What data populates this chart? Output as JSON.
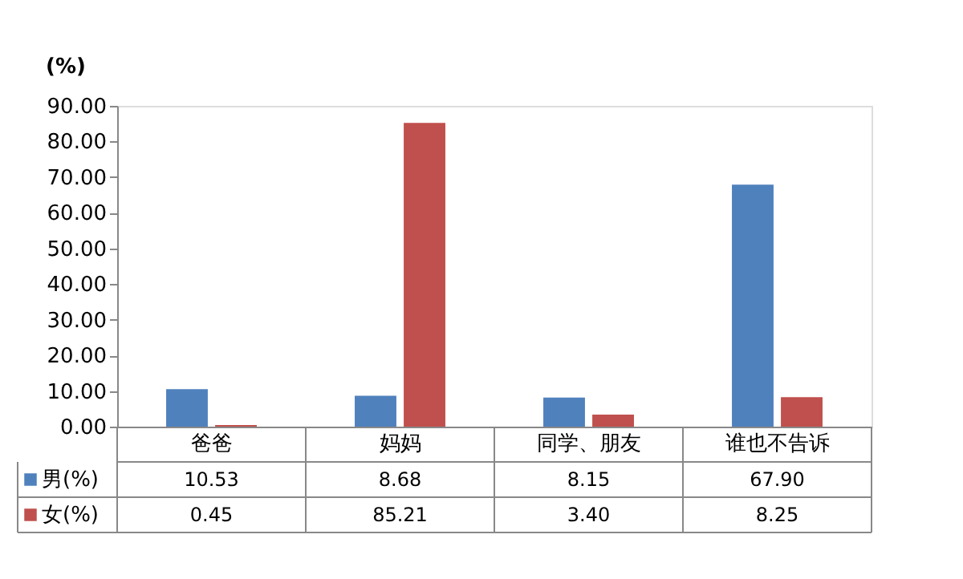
{
  "chart_data": {
    "type": "bar",
    "ylabel": "(%)",
    "categories": [
      "爸爸",
      "妈妈",
      "同学、朋友",
      "谁也不告诉"
    ],
    "series": [
      {
        "name": "男(%)",
        "color": "#4f81bd",
        "values": [
          10.53,
          8.68,
          8.15,
          67.9
        ],
        "value_labels": [
          "10.53",
          "8.68",
          "8.15",
          "67.90"
        ]
      },
      {
        "name": "女(%)",
        "color": "#c0504d",
        "values": [
          0.45,
          85.21,
          3.4,
          8.25
        ],
        "value_labels": [
          "0.45",
          "85.21",
          "3.40",
          "8.25"
        ]
      }
    ],
    "ylim": [
      0,
      90
    ],
    "yticks": [
      {
        "value": 0,
        "label": "0.00"
      },
      {
        "value": 10,
        "label": "10.00"
      },
      {
        "value": 20,
        "label": "20.00"
      },
      {
        "value": 30,
        "label": "30.00"
      },
      {
        "value": 40,
        "label": "40.00"
      },
      {
        "value": 50,
        "label": "50.00"
      },
      {
        "value": 60,
        "label": "60.00"
      },
      {
        "value": 70,
        "label": "70.00"
      },
      {
        "value": 80,
        "label": "80.00"
      },
      {
        "value": 90,
        "label": "90.00"
      }
    ],
    "grid": false,
    "legend": "bottom"
  }
}
